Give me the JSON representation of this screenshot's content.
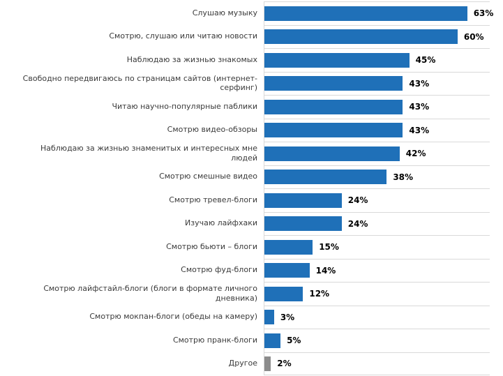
{
  "chart_data": {
    "type": "bar",
    "orientation": "horizontal",
    "categories": [
      "Слушаю музыку",
      "Смотрю, слушаю или читаю новости",
      "Наблюдаю за жизнью знакомых",
      "Свободно передвигаюсь по страницам сайтов (интернет-серфинг)",
      "Читаю научно-популярные паблики",
      "Смотрю видео-обзоры",
      "Наблюдаю за жизнью знаменитых и интересных мне людей",
      "Смотрю смешные видео",
      "Смотрю тревел-блоги",
      "Изучаю лайфхаки",
      "Смотрю бьюти – блоги",
      "Смотрю фуд-блоги",
      "Смотрю лайфстайл-блоги (блоги в формате личного дневника)",
      "Смотрю мокпан-блоги (обеды на камеру)",
      "Смотрю пранк-блоги",
      "Другое"
    ],
    "values": [
      63,
      60,
      45,
      43,
      43,
      43,
      42,
      38,
      24,
      24,
      15,
      14,
      12,
      3,
      5,
      2
    ],
    "value_labels": [
      "63%",
      "60%",
      "45%",
      "43%",
      "43%",
      "43%",
      "42%",
      "38%",
      "24%",
      "24%",
      "15%",
      "14%",
      "12%",
      "3%",
      "5%",
      "2%"
    ],
    "bar_colors": [
      "#1f70b8",
      "#1f70b8",
      "#1f70b8",
      "#1f70b8",
      "#1f70b8",
      "#1f70b8",
      "#1f70b8",
      "#1f70b8",
      "#1f70b8",
      "#1f70b8",
      "#1f70b8",
      "#1f70b8",
      "#1f70b8",
      "#1f70b8",
      "#1f70b8",
      "#8c8c8c"
    ],
    "xlim": [
      0,
      70
    ],
    "xlabel": "",
    "ylabel": "",
    "title": "",
    "grid": true,
    "legend": false
  },
  "colors": {
    "bar_primary": "#1f70b8",
    "bar_other": "#8c8c8c",
    "gridline": "#d9d9d9",
    "category_text": "#3a3a3a",
    "value_text": "#000000",
    "background": "#ffffff"
  }
}
